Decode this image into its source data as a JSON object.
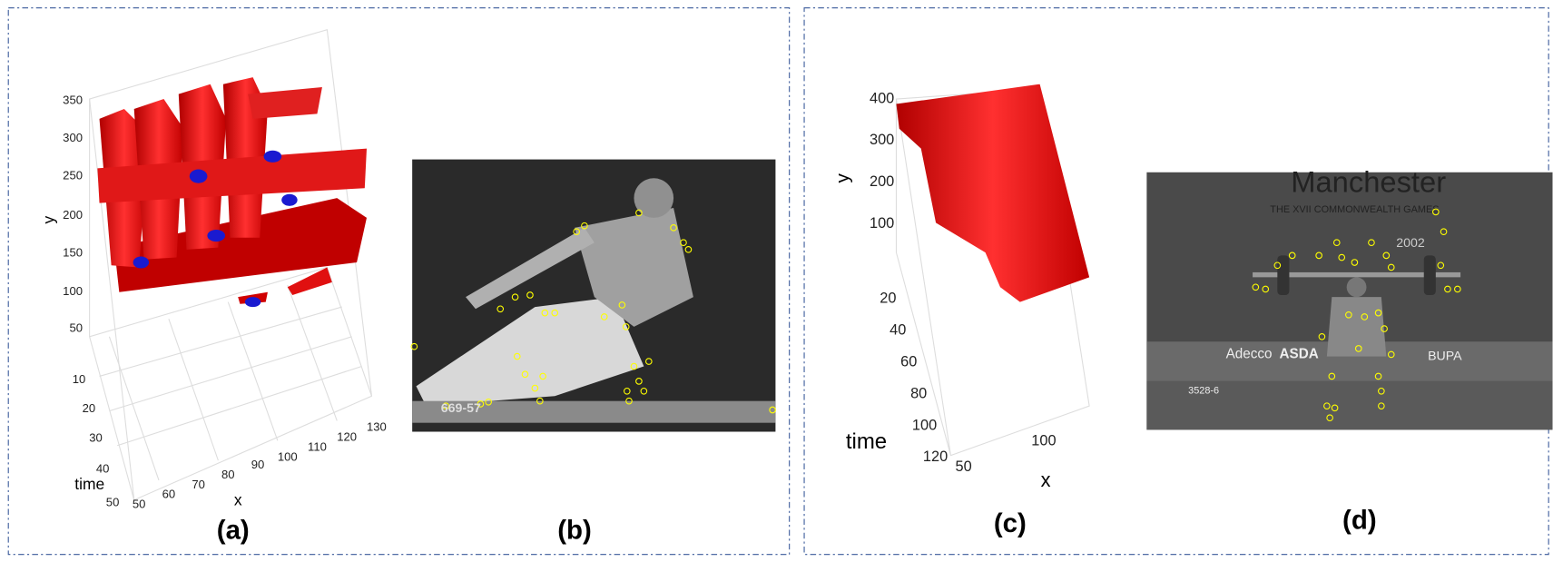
{
  "panel_a": {
    "y_label": "y",
    "y_ticks": [
      350,
      300,
      250,
      200,
      150,
      100,
      50
    ],
    "time_label": "time",
    "time_ticks": [
      10,
      20,
      30,
      40,
      50
    ],
    "x_label": "x",
    "x_ticks": [
      50,
      60,
      70,
      80,
      90,
      100,
      110,
      120,
      130
    ],
    "caption": "(a)"
  },
  "panel_b": {
    "overlay_text": "669-57",
    "caption": "(b)"
  },
  "panel_c": {
    "y_label": "y",
    "y_ticks": [
      400,
      300,
      200,
      100
    ],
    "time_label": "time",
    "time_ticks": [
      20,
      40,
      60,
      80,
      100,
      120
    ],
    "x_label": "x",
    "x_ticks": [
      50,
      100
    ],
    "caption": "(c)"
  },
  "panel_d": {
    "banner": "Manchester",
    "subtitle": "THE XVII COMMONWEALTH GAMES",
    "year": "2002",
    "sponsors": [
      "Adecco",
      "ASDA",
      "BUPA"
    ],
    "scoreboard": "3528-6",
    "caption": "(d)"
  }
}
